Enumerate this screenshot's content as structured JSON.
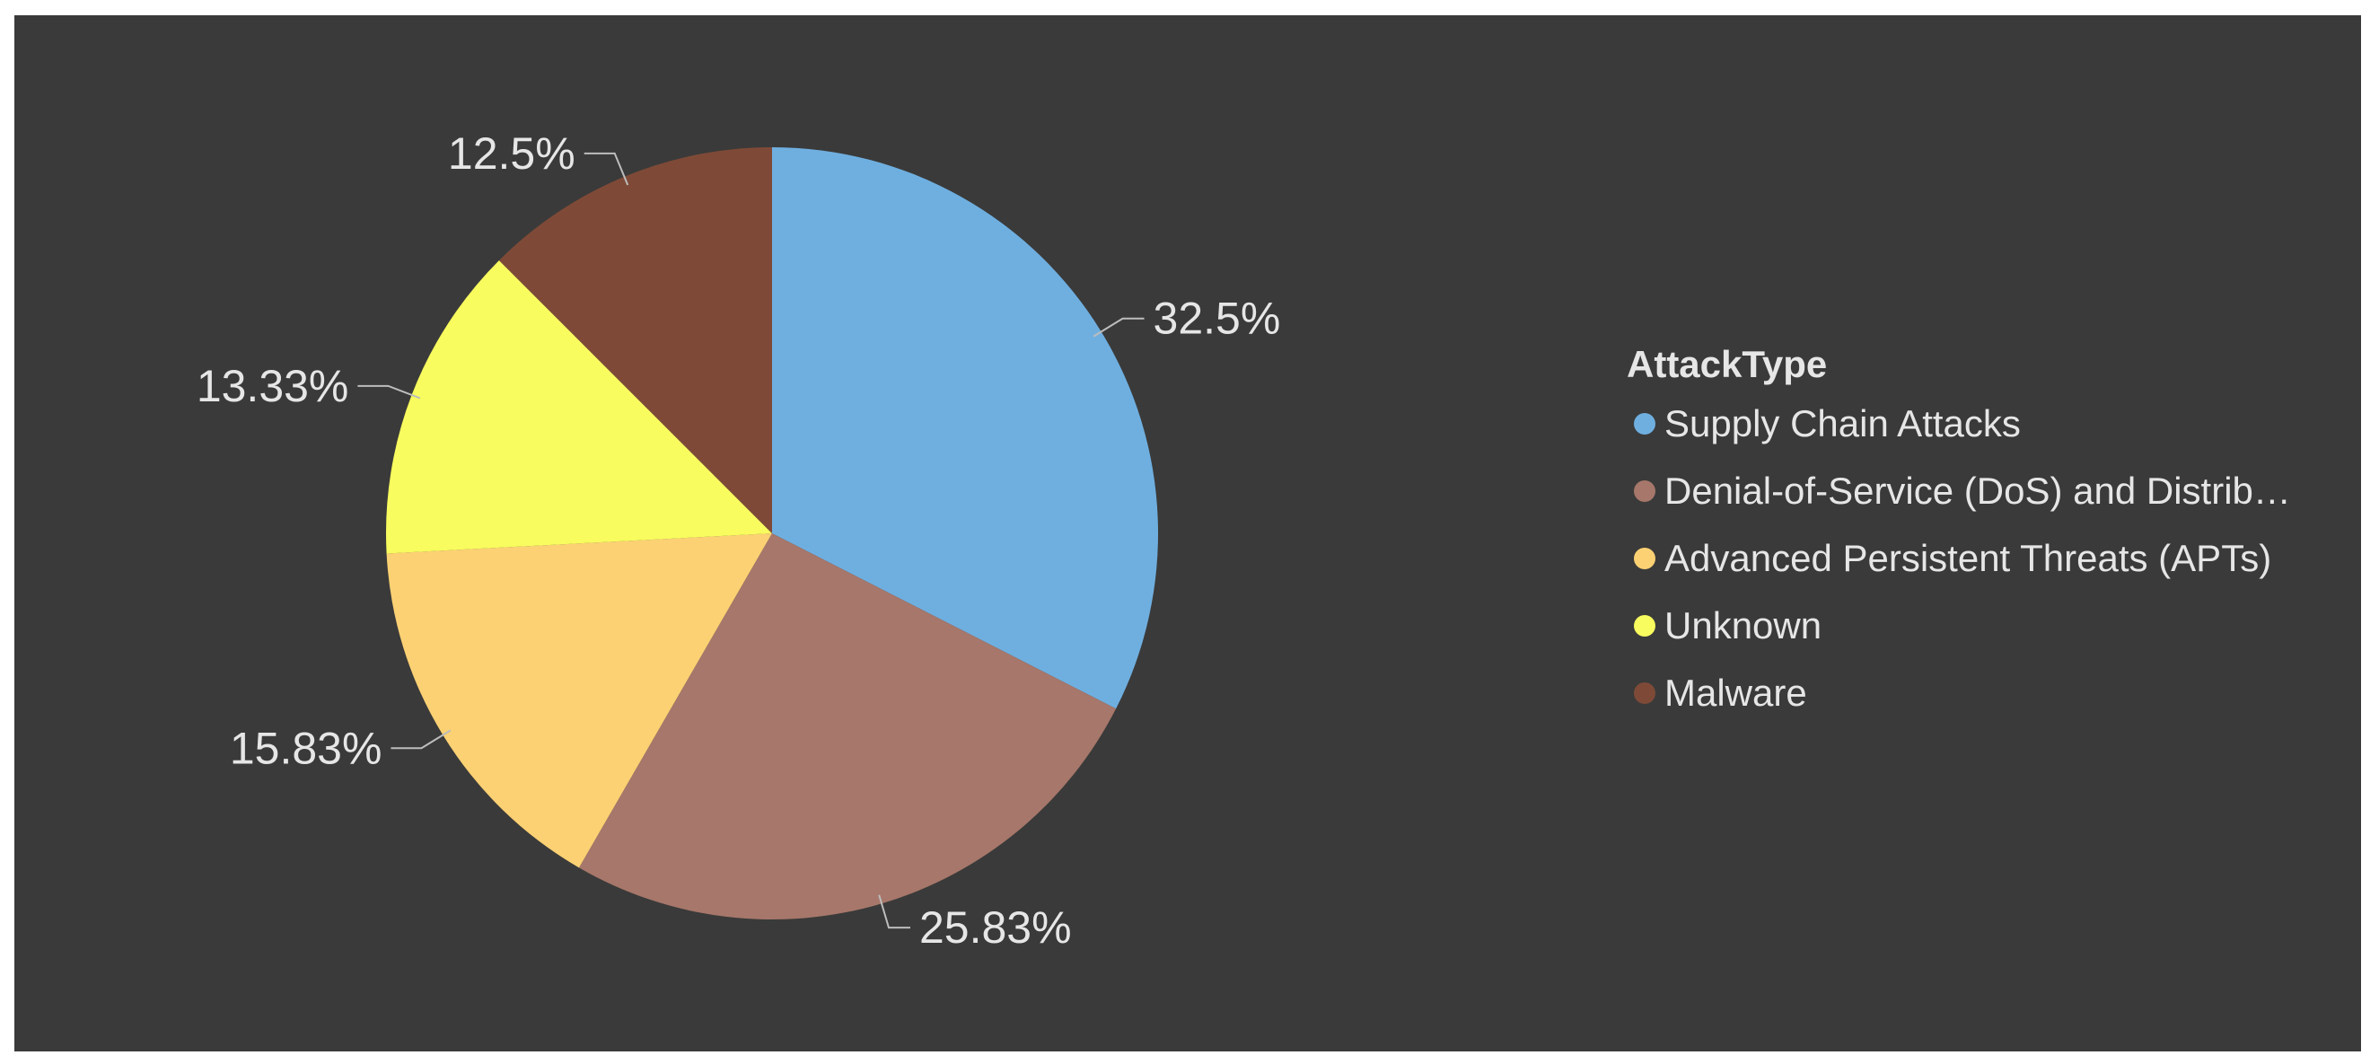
{
  "chart_data": {
    "type": "pie",
    "legend_title": "AttackType",
    "legend_position": "right",
    "slices": [
      {
        "name": "Supply Chain Attacks",
        "value": 32.5,
        "label": "32.5%",
        "color": "#6fafe0"
      },
      {
        "name": "Denial-of-Service (DoS) and Distrib…",
        "value": 25.83,
        "label": "25.83%",
        "color": "#a6776a"
      },
      {
        "name": "Advanced Persistent Threats (APTs)",
        "value": 15.83,
        "label": "15.83%",
        "color": "#fcd173"
      },
      {
        "name": "Unknown",
        "value": 13.33,
        "label": "13.33%",
        "color": "#f8fc5e"
      },
      {
        "name": "Malware",
        "value": 12.5,
        "label": "12.5%",
        "color": "#7e4a37"
      }
    ]
  },
  "colors": {
    "background": "#3a3a3a",
    "text": "#e6e6e6"
  }
}
